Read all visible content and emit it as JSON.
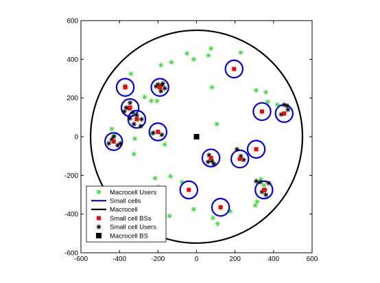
{
  "chart_data": {
    "type": "scatter",
    "title": "",
    "xlabel": "",
    "ylabel": "",
    "xlim": [
      -600,
      600
    ],
    "ylim": [
      -600,
      600
    ],
    "x_ticks": [
      -600,
      -400,
      -200,
      0,
      200,
      400,
      600
    ],
    "y_ticks": [
      -600,
      -400,
      -200,
      0,
      200,
      400,
      600
    ],
    "x_tick_labels": [
      "-600",
      "-400",
      "-200",
      "0",
      "200",
      "400",
      "600"
    ],
    "y_tick_labels": [
      "-600",
      "-400",
      "-200",
      "0",
      "200",
      "400",
      "600"
    ],
    "grid": false,
    "legend_position": "bottom-left",
    "macrocell": {
      "center": [
        0,
        0
      ],
      "radius": 550,
      "color": "#000000"
    },
    "small_cell_radius": 45,
    "series": [
      {
        "name": "Macrocell Users",
        "marker": "*",
        "color": "#33dd33",
        "points": [
          [
            75,
            455
          ],
          [
            62,
            420
          ],
          [
            -50,
            430
          ],
          [
            -130,
            385
          ],
          [
            -185,
            370
          ],
          [
            -15,
            400
          ],
          [
            230,
            435
          ],
          [
            -340,
            325
          ],
          [
            80,
            255
          ],
          [
            310,
            240
          ],
          [
            360,
            230
          ],
          [
            -235,
            185
          ],
          [
            -205,
            185
          ],
          [
            -270,
            205
          ],
          [
            105,
            65
          ],
          [
            -440,
            40
          ],
          [
            -425,
            5
          ],
          [
            -320,
            -10
          ],
          [
            -325,
            -90
          ],
          [
            -230,
            15
          ],
          [
            -165,
            -40
          ],
          [
            -135,
            -205
          ],
          [
            -75,
            -235
          ],
          [
            -215,
            -215
          ],
          [
            -200,
            -260
          ],
          [
            -140,
            -410
          ],
          [
            -15,
            -375
          ],
          [
            -240,
            -390
          ],
          [
            85,
            -420
          ],
          [
            110,
            -450
          ],
          [
            315,
            -335
          ],
          [
            305,
            -355
          ],
          [
            335,
            -220
          ],
          [
            350,
            -250
          ],
          [
            175,
            -385
          ],
          [
            420,
            165
          ],
          [
            370,
            180
          ]
        ]
      },
      {
        "name": "Small cells",
        "marker": "circle",
        "color": "#0000ee",
        "points": [
          [
            -370,
            255
          ],
          [
            -190,
            255
          ],
          [
            -345,
            150
          ],
          [
            -310,
            90
          ],
          [
            -430,
            -25
          ],
          [
            -200,
            25
          ],
          [
            195,
            350
          ],
          [
            340,
            130
          ],
          [
            455,
            120
          ],
          [
            310,
            -65
          ],
          [
            225,
            -115
          ],
          [
            75,
            -110
          ],
          [
            350,
            -275
          ],
          [
            -40,
            -275
          ],
          [
            125,
            -365
          ]
        ]
      },
      {
        "name": "Macrocell",
        "marker": "line",
        "color": "#000000",
        "points": []
      },
      {
        "name": "Small cell BSs",
        "marker": "square",
        "color": "#ff0000",
        "points": [
          [
            -370,
            255
          ],
          [
            -190,
            255
          ],
          [
            -345,
            150
          ],
          [
            -310,
            90
          ],
          [
            -430,
            -25
          ],
          [
            -200,
            25
          ],
          [
            195,
            350
          ],
          [
            340,
            130
          ],
          [
            455,
            120
          ],
          [
            310,
            -65
          ],
          [
            225,
            -115
          ],
          [
            75,
            -110
          ],
          [
            350,
            -275
          ],
          [
            -40,
            -275
          ],
          [
            125,
            -365
          ]
        ]
      },
      {
        "name": "Small cell Users",
        "marker": "*",
        "color": "#000000",
        "points": [
          [
            -200,
            270
          ],
          [
            -175,
            275
          ],
          [
            -185,
            235
          ],
          [
            -210,
            260
          ],
          [
            -165,
            250
          ],
          [
            -365,
            150
          ],
          [
            -345,
            175
          ],
          [
            -330,
            125
          ],
          [
            -375,
            130
          ],
          [
            -350,
            145
          ],
          [
            -285,
            90
          ],
          [
            -325,
            65
          ],
          [
            -290,
            55
          ],
          [
            -310,
            110
          ],
          [
            -345,
            95
          ],
          [
            -440,
            -15
          ],
          [
            -410,
            -45
          ],
          [
            -430,
            0
          ],
          [
            -395,
            -35
          ],
          [
            -455,
            -35
          ],
          [
            -225,
            20
          ],
          [
            -180,
            10
          ],
          [
            475,
            140
          ],
          [
            470,
            160
          ],
          [
            440,
            115
          ],
          [
            455,
            165
          ],
          [
            210,
            -65
          ],
          [
            245,
            -120
          ],
          [
            230,
            -100
          ],
          [
            65,
            -95
          ],
          [
            80,
            -125
          ],
          [
            90,
            -140
          ],
          [
            60,
            -130
          ],
          [
            330,
            -235
          ],
          [
            355,
            -275
          ],
          [
            360,
            -300
          ],
          [
            340,
            -285
          ],
          [
            375,
            -240
          ],
          [
            310,
            -230
          ],
          [
            -370,
            260
          ],
          [
            -180,
            265
          ]
        ]
      },
      {
        "name": "Macrocell BS",
        "marker": "square-large",
        "color": "#000000",
        "points": [
          [
            0,
            0
          ]
        ]
      }
    ]
  }
}
